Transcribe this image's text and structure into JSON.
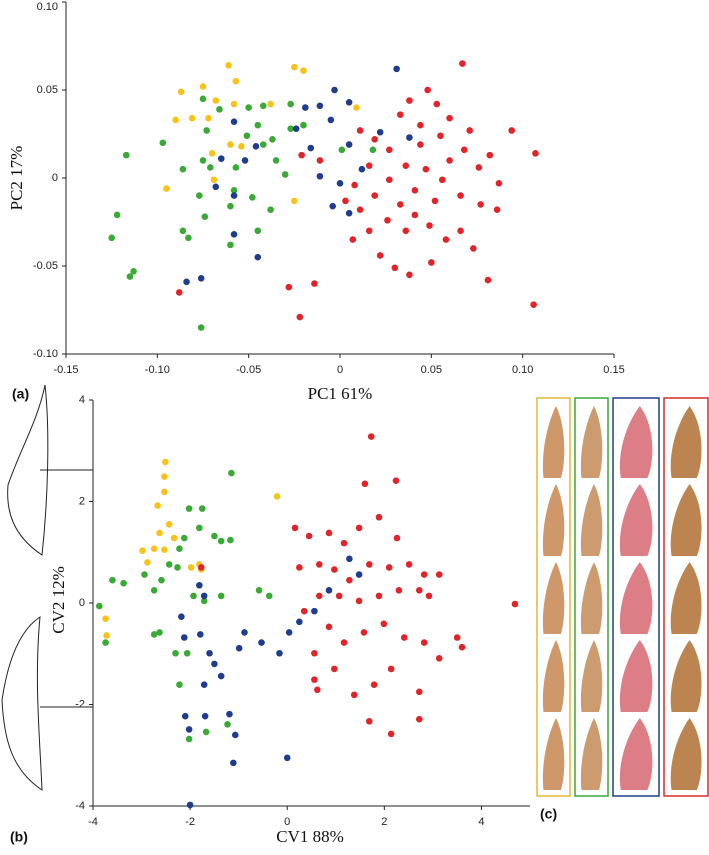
{
  "chart_data": [
    {
      "type": "scatter",
      "panel_label": "(a)",
      "xlabel": "PC1 61%",
      "ylabel": "PC2 17%",
      "xlim": [
        -0.15,
        0.15
      ],
      "ylim": [
        -0.1,
        0.1
      ],
      "xticks": [
        -0.15,
        {
          "value": -0.1,
          "label": "-0.10"
        },
        -0.05,
        0,
        0.05,
        {
          "value": 0.1,
          "label": "0.10"
        },
        0.15
      ],
      "yticks": [
        {
          "value": 0.1,
          "label": "0.10"
        },
        0.05,
        0,
        -0.05,
        {
          "value": -0.1,
          "label": "-0.10"
        }
      ],
      "series": [
        {
          "color": "#f7c31a",
          "x": [
            -0.061,
            -0.057,
            -0.075,
            -0.087,
            -0.025,
            -0.02,
            -0.068,
            -0.058,
            -0.09,
            -0.081,
            -0.072,
            -0.095,
            -0.069,
            -0.07,
            -0.038,
            0.009,
            -0.054,
            -0.025,
            -0.06
          ],
          "values": [
            0.064,
            0.055,
            0.052,
            0.049,
            0.063,
            0.061,
            0.044,
            0.042,
            0.033,
            0.034,
            0.034,
            -0.006,
            -0.001,
            0.014,
            0.042,
            0.04,
            0.018,
            -0.013,
            0.019
          ]
        },
        {
          "color": "#3aa935",
          "x": [
            -0.117,
            -0.122,
            -0.125,
            -0.113,
            -0.115,
            -0.097,
            -0.075,
            -0.066,
            -0.073,
            -0.05,
            -0.042,
            -0.027,
            -0.075,
            -0.071,
            -0.086,
            -0.077,
            -0.074,
            -0.086,
            -0.083,
            -0.06,
            -0.058,
            -0.057,
            -0.048,
            -0.038,
            -0.045,
            -0.06,
            -0.045,
            -0.027,
            -0.02,
            -0.042,
            -0.035,
            -0.03,
            -0.076,
            0.001,
            0.018,
            -0.037,
            -0.051
          ],
          "values": [
            0.013,
            -0.021,
            -0.034,
            -0.053,
            -0.056,
            0.02,
            0.045,
            0.039,
            0.027,
            0.04,
            0.041,
            0.042,
            0.01,
            0.006,
            0.005,
            -0.01,
            -0.022,
            -0.03,
            -0.034,
            -0.016,
            -0.007,
            0.006,
            -0.011,
            -0.018,
            -0.03,
            -0.038,
            0.03,
            0.028,
            0.03,
            0.019,
            0.01,
            0.002,
            -0.085,
            0.016,
            0.016,
            0.022,
            0.024
          ]
        },
        {
          "color": "#1f3d8c",
          "x": [
            0.031,
            -0.003,
            -0.011,
            -0.005,
            -0.024,
            -0.019,
            0.005,
            -0.058,
            -0.065,
            -0.068,
            -0.052,
            -0.046,
            -0.058,
            -0.058,
            -0.045,
            -0.076,
            -0.084,
            -0.016,
            -0.011,
            -0.004,
            0.0,
            0.005,
            0.022,
            0.038,
            0.005,
            0.012
          ],
          "values": [
            0.062,
            0.05,
            0.041,
            0.033,
            0.028,
            0.04,
            0.043,
            0.032,
            0.011,
            -0.005,
            0.01,
            0.018,
            -0.01,
            -0.032,
            -0.045,
            -0.057,
            -0.059,
            0.017,
            0.001,
            -0.016,
            -0.003,
            -0.02,
            0.026,
            0.023,
            0.019,
            0.005
          ]
        },
        {
          "color": "#e0242a",
          "x": [
            0.067,
            0.048,
            0.038,
            0.053,
            0.033,
            0.044,
            0.06,
            0.071,
            0.094,
            0.107,
            0.082,
            0.076,
            0.087,
            0.086,
            0.077,
            0.066,
            0.056,
            0.047,
            0.036,
            0.027,
            0.019,
            0.011,
            0.016,
            0.008,
            0.003,
            0.011,
            0.019,
            0.026,
            0.036,
            0.041,
            0.049,
            0.058,
            0.066,
            0.073,
            0.081,
            0.106,
            0.05,
            0.038,
            0.03,
            0.022,
            0.016,
            0.007,
            -0.014,
            -0.028,
            -0.022,
            -0.088,
            -0.021,
            -0.011,
            0.041,
            0.06,
            0.055,
            0.068,
            0.027,
            0.044,
            0.033,
            0.052
          ],
          "values": [
            0.065,
            0.05,
            0.044,
            0.042,
            0.036,
            0.03,
            0.034,
            0.027,
            0.027,
            0.014,
            0.013,
            0.006,
            -0.003,
            -0.018,
            -0.015,
            -0.01,
            -0.001,
            0.005,
            0.007,
            0.016,
            0.022,
            0.027,
            0.007,
            -0.004,
            -0.013,
            -0.018,
            -0.01,
            -0.024,
            -0.03,
            -0.021,
            -0.027,
            -0.035,
            -0.03,
            -0.04,
            -0.058,
            -0.072,
            -0.048,
            -0.055,
            -0.051,
            -0.044,
            -0.03,
            -0.035,
            -0.06,
            -0.062,
            -0.079,
            -0.065,
            0.013,
            0.01,
            -0.007,
            0.01,
            0.024,
            0.016,
            -0.001,
            0.019,
            -0.015,
            -0.013
          ]
        }
      ]
    },
    {
      "type": "scatter",
      "panel_label": "(b)",
      "xlabel": "CV1 88%",
      "ylabel": "CV2 12%",
      "xlim": [
        -4,
        5
      ],
      "ylim": [
        -4,
        4
      ],
      "xticks": [
        -4,
        -2,
        0,
        2,
        4
      ],
      "yticks": [
        4,
        2,
        0,
        -2,
        -4
      ],
      "series": [
        {
          "color": "#f7c31a",
          "x": [
            -2.53,
            -2.67,
            -2.53,
            -2.51,
            -2.53,
            -2.43,
            -2.63,
            -2.33,
            -2.74,
            -2.88,
            -1.81,
            -1.77,
            -1.98,
            -3.74,
            -3.72,
            -0.21,
            -2.98
          ],
          "values": [
            1.05,
            1.92,
            2.19,
            2.78,
            2.49,
            1.55,
            1.38,
            1.28,
            1.07,
            0.8,
            0.76,
            0.66,
            0.7,
            -0.31,
            -0.64,
            2.1,
            1.03
          ]
        },
        {
          "color": "#3aa935",
          "x": [
            -3.87,
            -3.74,
            -3.6,
            -3.37,
            -2.94,
            -2.74,
            -2.59,
            -2.43,
            -2.26,
            -2.22,
            -2.12,
            -2.02,
            -1.75,
            -1.81,
            -1.5,
            -1.36,
            -1.17,
            -1.15,
            -1.36,
            -1.93,
            -1.71,
            -2.63,
            -2.3,
            -2.06,
            -2.22,
            -2.02,
            -1.67,
            -1.23,
            -0.58,
            -0.37,
            -2.74
          ],
          "values": [
            -0.06,
            -0.78,
            0.45,
            0.39,
            0.56,
            0.25,
            0.45,
            0.76,
            0.7,
            1.07,
            1.28,
            1.86,
            1.86,
            1.48,
            1.32,
            1.22,
            1.24,
            2.56,
            0.14,
            0.14,
            0.04,
            -0.58,
            -0.99,
            -0.99,
            -1.61,
            -2.68,
            -2.54,
            -2.39,
            0.25,
            0.14,
            -0.62
          ]
        },
        {
          "color": "#1f3d8c",
          "x": [
            -2.18,
            -2.12,
            -1.79,
            -1.6,
            -1.5,
            -1.36,
            -1.71,
            -2.1,
            -2.02,
            -1.69,
            -1.19,
            -1.07,
            -1.11,
            -2.0,
            0.0,
            -0.88,
            -0.99,
            -0.53,
            -0.16,
            0.04,
            0.25,
            0.56,
            0.86,
            1.28,
            1.48,
            -1.81,
            -1.71
          ],
          "values": [
            -0.27,
            -0.68,
            -0.62,
            -0.99,
            -1.2,
            -1.44,
            -1.61,
            -2.23,
            -2.49,
            -2.23,
            -2.19,
            -2.6,
            -3.15,
            -3.98,
            -3.05,
            -0.58,
            -0.89,
            -0.78,
            -0.99,
            -0.58,
            -0.37,
            -0.16,
            0.25,
            0.87,
            0.56,
            0.35,
            0.14
          ]
        },
        {
          "color": "#e0242a",
          "x": [
            0.56,
            0.62,
            0.25,
            0.16,
            0.45,
            0.86,
            1.17,
            1.48,
            1.89,
            2.26,
            1.6,
            1.73,
            2.24,
            0.66,
            0.97,
            1.28,
            1.69,
            2.1,
            2.51,
            2.82,
            2.72,
            2.3,
            1.89,
            1.48,
            1.07,
            0.66,
            0.35,
            0.86,
            1.17,
            1.58,
            1.99,
            2.41,
            2.82,
            3.13,
            2.14,
            1.79,
            1.38,
            0.97,
            2.72,
            2.72,
            2.14,
            1.69,
            3.5,
            3.6,
            4.69,
            -1.77,
            2.92,
            3.13,
            0.56
          ],
          "values": [
            -1.51,
            -1.71,
            0.7,
            1.48,
            1.32,
            1.38,
            1.18,
            1.48,
            1.69,
            1.28,
            2.35,
            3.28,
            2.41,
            0.76,
            0.66,
            0.45,
            0.76,
            0.7,
            0.76,
            0.56,
            0.25,
            0.25,
            0.14,
            0.04,
            0.14,
            0.14,
            -0.16,
            -0.47,
            -0.78,
            -0.58,
            -0.41,
            -0.68,
            -0.78,
            -1.09,
            -1.3,
            -1.61,
            -1.81,
            -1.3,
            -1.75,
            -2.29,
            -2.58,
            -2.33,
            -0.68,
            -0.87,
            -0.02,
            0.7,
            0.14,
            0.56,
            -0.99
          ]
        }
      ]
    }
  ],
  "images_panel": {
    "label": "(c)"
  }
}
